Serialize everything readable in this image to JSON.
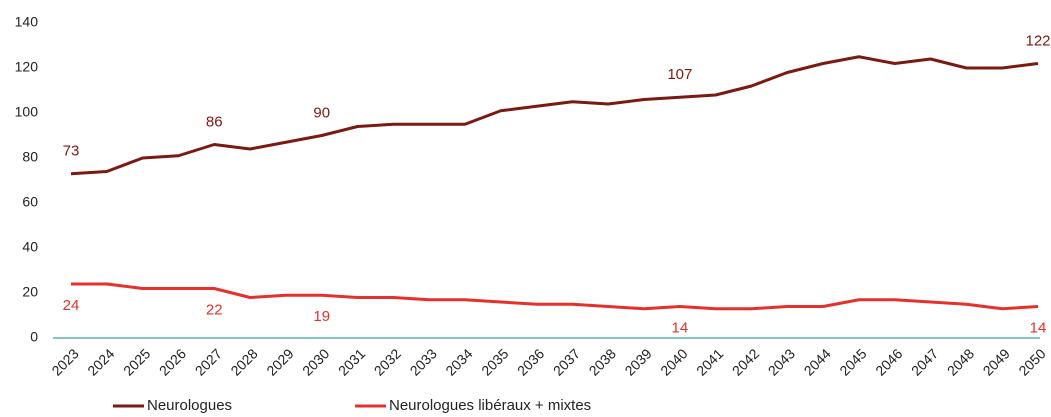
{
  "chart_data": {
    "type": "line",
    "categories": [
      "2023",
      "2024",
      "2025",
      "2026",
      "2027",
      "2028",
      "2029",
      "2030",
      "2031",
      "2032",
      "2033",
      "2034",
      "2035",
      "2036",
      "2037",
      "2038",
      "2039",
      "2040",
      "2041",
      "2042",
      "2043",
      "2044",
      "2045",
      "2046",
      "2047",
      "2048",
      "2049",
      "2050"
    ],
    "series": [
      {
        "name": "Neurologues",
        "color": "#7b1a12",
        "label_position": "above",
        "label_indices": [
          0,
          4,
          7,
          17,
          27
        ],
        "values": [
          73,
          74,
          80,
          81,
          86,
          84,
          87,
          90,
          94,
          95,
          95,
          95,
          101,
          103,
          105,
          104,
          106,
          107,
          108,
          112,
          118,
          122,
          125,
          122,
          124,
          120,
          120,
          122
        ]
      },
      {
        "name": "Neurologues libéraux + mixtes",
        "color": "#e5312b",
        "label_position": "below",
        "label_indices": [
          0,
          4,
          7,
          17,
          27
        ],
        "values": [
          24,
          24,
          22,
          22,
          22,
          18,
          19,
          19,
          18,
          18,
          17,
          17,
          16,
          15,
          15,
          14,
          13,
          14,
          13,
          13,
          14,
          14,
          17,
          17,
          16,
          15,
          13,
          14
        ]
      }
    ],
    "ylim": [
      0,
      140
    ],
    "yticks": [
      0,
      20,
      40,
      60,
      80,
      100,
      120,
      140
    ],
    "axis_color": "#5bb8a8",
    "legend": "bottom-left"
  }
}
